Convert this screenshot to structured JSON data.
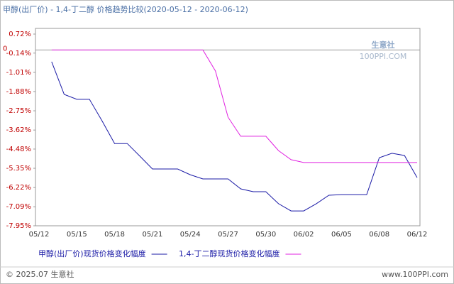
{
  "chart_data": {
    "type": "line",
    "title": "甲醇(出厂价) - 1,4-丁二醇 价格趋势比较(2020-05-12 - 2020-06-12)",
    "watermark": {
      "name": "生意社",
      "site": "100PPI.COM"
    },
    "footer": {
      "left": "© 2025.07 生意社",
      "right": "www.100PPI.com"
    },
    "categories": [
      "05/12",
      null,
      null,
      "05/15",
      null,
      null,
      "05/18",
      null,
      null,
      "05/21",
      null,
      null,
      "05/24",
      null,
      null,
      "05/27",
      null,
      null,
      "05/30",
      null,
      null,
      "06/02",
      null,
      null,
      "06/05",
      null,
      null,
      "06/08",
      null,
      null,
      "06/12"
    ],
    "ylim": [
      -7.95,
      0.72
    ],
    "yticks": [
      {
        "value": 0.72,
        "label": "0.72%"
      },
      0,
      {
        "value": -0.14,
        "label": "-0.14%"
      },
      {
        "value": -1.01,
        "label": "-1.01%"
      },
      {
        "value": -1.88,
        "label": "-1.88%"
      },
      {
        "value": -2.75,
        "label": "-2.75%"
      },
      {
        "value": -3.62,
        "label": "-3.62%"
      },
      {
        "value": -4.48,
        "label": "-4.48%"
      },
      {
        "value": -5.35,
        "label": "-5.35%"
      },
      {
        "value": -6.22,
        "label": "-6.22%"
      },
      {
        "value": -7.09,
        "label": "-7.09%"
      },
      {
        "value": -7.95,
        "label": "-7.95%"
      }
    ],
    "series": [
      {
        "name": "甲醇(出厂价)现货价格变化幅度",
        "color": "#1a1aa6",
        "values": [
          null,
          -0.53,
          -2.01,
          -2.23,
          -2.23,
          -3.2,
          -4.23,
          -4.23,
          -4.8,
          -5.38,
          -5.38,
          -5.38,
          -5.64,
          -5.83,
          -5.83,
          -5.83,
          -6.28,
          -6.41,
          -6.41,
          -6.95,
          -7.28,
          -7.28,
          -6.95,
          -6.57,
          -6.54,
          -6.54,
          -6.54,
          -4.87,
          -4.67,
          -4.77,
          -5.77
        ]
      },
      {
        "name": "1,4-丁二醇现货价格变化幅度",
        "color": "#e020e0",
        "values": [
          null,
          0,
          0,
          0,
          0,
          0,
          0,
          0,
          0,
          0,
          0,
          0,
          0,
          0,
          -0.95,
          -3.04,
          -3.9,
          -3.9,
          -3.9,
          -4.55,
          -4.96,
          -5.09,
          -5.09,
          -5.09,
          -5.09,
          -5.09,
          -5.09,
          -5.09,
          -5.09,
          -5.09,
          -5.09
        ]
      }
    ]
  }
}
